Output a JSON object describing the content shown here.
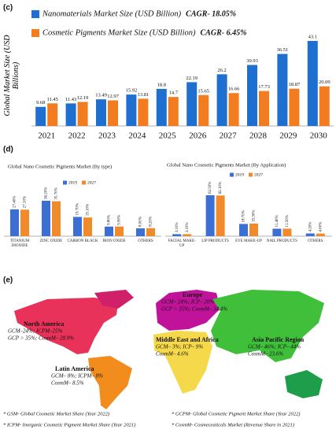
{
  "panels": [
    "(c)",
    "(d)",
    "(e)"
  ],
  "chart_data": [
    {
      "type": "bar",
      "ylabel": "Global Market Size (USD Billions)",
      "categories": [
        "2021",
        "2022",
        "2023",
        "2024",
        "2025",
        "2026",
        "2027",
        "2028",
        "2029",
        "2030"
      ],
      "series": [
        {
          "name": "Nanomaterials Market Size (USD Billion)",
          "annotation": "CAGR- 18.05%",
          "color": "#1f6fd0",
          "values": [
            9.68,
            11.43,
            13.49,
            15.92,
            18.8,
            22.19,
            26.2,
            30.93,
            36.51,
            43.1
          ]
        },
        {
          "name": "Cosmetic Pigments Market Size (USD Billion)",
          "annotation": "CAGR- 6.45%",
          "color": "#f37b20",
          "values": [
            11.45,
            12.19,
            12.97,
            13.81,
            14.7,
            15.65,
            16.66,
            17.73,
            18.87,
            20.09
          ]
        }
      ]
    },
    {
      "type": "bar",
      "title": "Global Nano Cosmetic Pigments Market (By type)",
      "categories": [
        "TITANIUM DIOXIDE",
        "ZINC OXIDE",
        "CARBON BLACK",
        "IRON OXIDE",
        "OTHERS"
      ],
      "series": [
        {
          "name": "2019",
          "color": "#3b6fd4",
          "values": [
            27.4,
            36.2,
            19.7,
            9.8,
            8.0
          ],
          "value_labels": [
            "27.40%",
            "36.20%",
            "19.70%",
            "9.80%",
            "8.00%"
          ]
        },
        {
          "name": "2027",
          "color": "#f08a2a",
          "values": [
            27.1,
            35.7,
            19.1,
            9.9,
            8.2
          ],
          "value_labels": [
            "27.10%",
            "35.70%",
            "19.10%",
            "9.90%",
            "8.20%"
          ]
        }
      ]
    },
    {
      "type": "bar",
      "title": "Global Nano Cosmetic Pigments Market (By Application)",
      "categories": [
        "FACIAL MAKE-UP",
        "LIP PRODUCTS",
        "EYE MAKE-UP",
        "NAIL PRODUCTS",
        "OTHERS"
      ],
      "series": [
        {
          "name": "2019",
          "color": "#3b6fd4",
          "values": [
            3.1,
            62.5,
            18.7,
            11.4,
            4.2
          ],
          "value_labels": [
            "3.10%",
            "62.50%",
            "18.70%",
            "11.40%",
            "4.20%"
          ]
        },
        {
          "name": "2027",
          "color": "#f08a2a",
          "values": [
            3.1,
            62.1,
            19.3,
            11.5,
            4.0
          ],
          "value_labels": [
            "3.10%",
            "62.10%",
            "19.30%",
            "11.50%",
            "4.00%"
          ]
        }
      ]
    }
  ],
  "map": {
    "regions": [
      {
        "name": "Europe",
        "lines": [
          "GCM– 24%; ICP– 20%",
          "GCP > 35%; CosmM– 34.4%"
        ]
      },
      {
        "name": "North America",
        "lines": [
          "GCM–24%; ICPM–25%",
          "GCP > 35%; CosmM– 28.9%"
        ]
      },
      {
        "name": "Middle East and Africa",
        "lines": [
          "GCM– 3%; ICP– 9%",
          "CosmM– 4.6%"
        ]
      },
      {
        "name": "Asia Pacific Region",
        "lines": [
          "GCM– 46%; ICP– 44%",
          "CosmM– 23.6%"
        ]
      },
      {
        "name": "Latin America",
        "lines": [
          "GCM– 8%; ICPM– 8%",
          "CosmM– 8.5%"
        ]
      }
    ],
    "footnotes": [
      "* GSM- Global Cosmetic Market Share (Year 2022)",
      "* ICPM- Inorganic Cosmetic Pigment Market Share (Year 2021)",
      "* GCPM- Global Cosmetic Pigment Market Share (Year 2022)",
      "* CosmM- Cosmeceuticals Market (Revenue Share in 2021)"
    ]
  }
}
